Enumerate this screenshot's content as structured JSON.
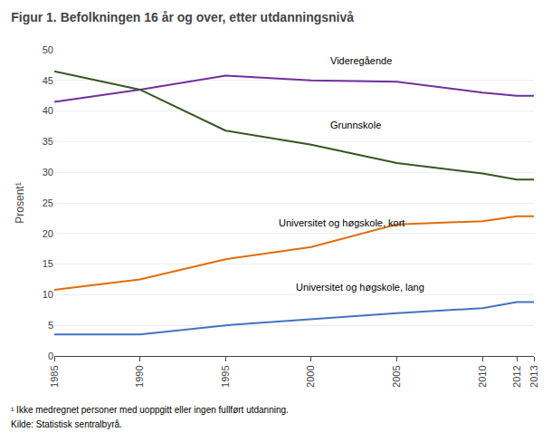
{
  "chart_data": {
    "type": "line",
    "title": "Figur 1. Befolkningen 16 år og over, etter utdanningsnivå",
    "y_label": "Prosent¹",
    "x": [
      1985,
      1990,
      1995,
      2000,
      2005,
      2010,
      2012,
      2013
    ],
    "xlim": [
      1985,
      2013
    ],
    "xticks": [
      1985,
      1990,
      1995,
      2000,
      2005,
      2010,
      2012,
      2013
    ],
    "ylim": [
      0,
      50
    ],
    "yticks": [
      0,
      5,
      10,
      15,
      20,
      25,
      30,
      35,
      40,
      45,
      50
    ],
    "grid": true,
    "series": [
      {
        "name": "Videregående",
        "color": "#7030a0",
        "values": [
          41.5,
          43.5,
          45.8,
          45.0,
          44.8,
          43.0,
          42.5,
          42.5
        ]
      },
      {
        "name": "Grunnskole",
        "color": "#375623",
        "values": [
          46.5,
          43.5,
          36.8,
          34.5,
          31.5,
          29.8,
          28.8,
          28.8
        ]
      },
      {
        "name": "Universitet og høgskole, kort",
        "color": "#e36c09",
        "values": [
          10.8,
          12.5,
          15.8,
          17.8,
          21.5,
          22.0,
          22.8,
          22.8
        ]
      },
      {
        "name": "Universitet og høgskole, lang",
        "color": "#4472c4",
        "values": [
          3.5,
          3.5,
          5.0,
          6.0,
          7.0,
          7.8,
          8.8,
          8.8
        ]
      }
    ],
    "annotations": [
      {
        "text": "Videregående",
        "x": 2001,
        "y": 47.0
      },
      {
        "text": "Grunnskole",
        "x": 2001,
        "y": 36.5
      },
      {
        "text": "Universitet og høgskole, kort",
        "x": 1998,
        "y": 20.5
      },
      {
        "text": "Universitet og høgskole, lang",
        "x": 1999,
        "y": 10.0
      }
    ],
    "footnotes": [
      "¹ Ikke medregnet personer med uoppgitt eller ingen fullført utdanning.",
      "Kilde: Statistisk sentralbyrå."
    ]
  }
}
